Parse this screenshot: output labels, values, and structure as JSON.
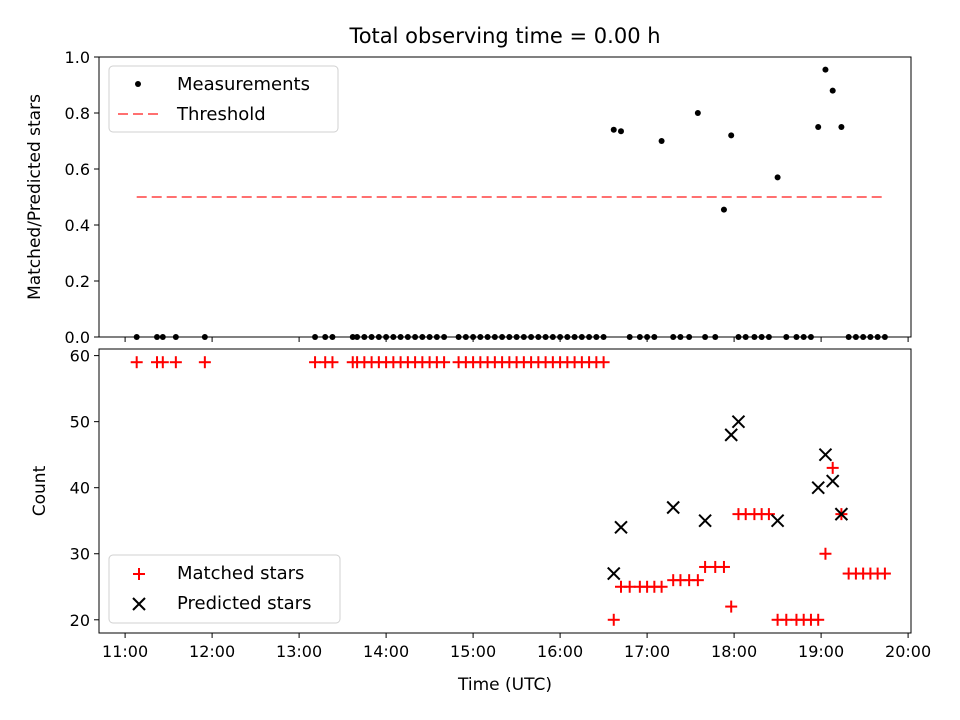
{
  "chart_data": [
    {
      "panel": "top",
      "type": "scatter",
      "title": "Total observing time = 0.00 h",
      "ylabel": "Matched/Predicted stars",
      "xlabel": "",
      "ylim": [
        0,
        1.0
      ],
      "yticks": [
        "0.0",
        "0.2",
        "0.4",
        "0.6",
        "0.8",
        "1.0"
      ],
      "legend": {
        "position": "top-left",
        "entries": [
          "Measurements",
          "Threshold"
        ]
      },
      "series": [
        {
          "name": "Measurements",
          "color": "#000000",
          "marker": "dot",
          "x": [
            "11:08",
            "11:22",
            "11:26",
            "11:35",
            "11:55",
            "13:11",
            "13:18",
            "13:23",
            "13:37",
            "13:40",
            "13:45",
            "13:50",
            "13:55",
            "14:00",
            "14:05",
            "14:10",
            "14:15",
            "14:20",
            "14:25",
            "14:30",
            "14:35",
            "14:40",
            "14:50",
            "14:55",
            "15:00",
            "15:05",
            "15:10",
            "15:15",
            "15:20",
            "15:25",
            "15:30",
            "15:35",
            "15:40",
            "15:45",
            "15:50",
            "15:55",
            "16:00",
            "16:05",
            "16:10",
            "16:15",
            "16:20",
            "16:25",
            "16:30",
            "16:37",
            "16:42",
            "16:48",
            "16:55",
            "17:00",
            "17:05",
            "17:10",
            "17:18",
            "17:23",
            "17:29",
            "17:35",
            "17:40",
            "17:47",
            "17:53",
            "17:58",
            "18:03",
            "18:08",
            "18:14",
            "18:19",
            "18:24",
            "18:30",
            "18:36",
            "18:43",
            "18:48",
            "18:53",
            "18:58",
            "19:03",
            "19:08",
            "19:14",
            "19:19",
            "19:24",
            "19:29",
            "19:34",
            "19:39",
            "19:44"
          ],
          "y": [
            0,
            0,
            0,
            0,
            0,
            0,
            0,
            0,
            0,
            0,
            0,
            0,
            0,
            0,
            0,
            0,
            0,
            0,
            0,
            0,
            0,
            0,
            0,
            0,
            0,
            0,
            0,
            0,
            0,
            0,
            0,
            0,
            0,
            0,
            0,
            0,
            0,
            0,
            0,
            0,
            0,
            0,
            0,
            0.74,
            0.735,
            0,
            0,
            0,
            0,
            0.7,
            0,
            0,
            0,
            0.8,
            0,
            0,
            0.455,
            0.72,
            0,
            0,
            0,
            0,
            0,
            0.57,
            0,
            0,
            0,
            0,
            0.75,
            0.955,
            0.88,
            0.75,
            0,
            0,
            0,
            0,
            0,
            0
          ]
        },
        {
          "name": "Threshold",
          "color": "#ff7070",
          "style": "dashed",
          "x": [
            "11:08",
            "19:44"
          ],
          "y": [
            0.5,
            0.5
          ]
        }
      ]
    },
    {
      "panel": "bottom",
      "type": "scatter",
      "title": "",
      "ylabel": "Count",
      "xlabel": "Time (UTC)",
      "ylim": [
        18,
        61
      ],
      "yticks": [
        "20",
        "30",
        "40",
        "50",
        "60"
      ],
      "xlim": [
        "10:42",
        "20:02"
      ],
      "xticks": [
        "11:00",
        "12:00",
        "13:00",
        "14:00",
        "15:00",
        "16:00",
        "17:00",
        "18:00",
        "19:00",
        "20:00"
      ],
      "legend": {
        "position": "bottom-left",
        "entries": [
          "Matched stars",
          "Predicted stars"
        ]
      },
      "series": [
        {
          "name": "Matched stars",
          "color": "#ff0000",
          "marker": "plus",
          "x": [
            "11:08",
            "11:22",
            "11:26",
            "11:35",
            "11:55",
            "13:11",
            "13:18",
            "13:23",
            "13:37",
            "13:40",
            "13:45",
            "13:50",
            "13:55",
            "14:00",
            "14:05",
            "14:10",
            "14:15",
            "14:20",
            "14:25",
            "14:30",
            "14:35",
            "14:40",
            "14:50",
            "14:55",
            "15:00",
            "15:05",
            "15:10",
            "15:15",
            "15:20",
            "15:25",
            "15:30",
            "15:35",
            "15:40",
            "15:45",
            "15:50",
            "15:55",
            "16:00",
            "16:05",
            "16:10",
            "16:15",
            "16:20",
            "16:25",
            "16:30",
            "16:37",
            "16:42",
            "16:48",
            "16:55",
            "17:00",
            "17:05",
            "17:10",
            "17:18",
            "17:23",
            "17:29",
            "17:35",
            "17:40",
            "17:47",
            "17:53",
            "17:58",
            "18:03",
            "18:08",
            "18:14",
            "18:19",
            "18:24",
            "18:30",
            "18:36",
            "18:43",
            "18:48",
            "18:53",
            "18:58",
            "19:03",
            "19:08",
            "19:14",
            "19:19",
            "19:24",
            "19:29",
            "19:34",
            "19:39",
            "19:44"
          ],
          "y": [
            59,
            59,
            59,
            59,
            59,
            59,
            59,
            59,
            59,
            59,
            59,
            59,
            59,
            59,
            59,
            59,
            59,
            59,
            59,
            59,
            59,
            59,
            59,
            59,
            59,
            59,
            59,
            59,
            59,
            59,
            59,
            59,
            59,
            59,
            59,
            59,
            59,
            59,
            59,
            59,
            59,
            59,
            59,
            20,
            25,
            25,
            25,
            25,
            25,
            25,
            26,
            26,
            26,
            26,
            28,
            28,
            28,
            22,
            36,
            36,
            36,
            36,
            36,
            20,
            20,
            20,
            20,
            20,
            20,
            30,
            43,
            36,
            27,
            27,
            27,
            27,
            27,
            27
          ]
        },
        {
          "name": "Predicted stars",
          "color": "#000000",
          "marker": "x",
          "x": [
            "16:37",
            "16:42",
            "17:18",
            "17:40",
            "17:58",
            "18:03",
            "18:30",
            "18:58",
            "19:03",
            "19:08",
            "19:14"
          ],
          "y": [
            27,
            34,
            37,
            35,
            48,
            50,
            35,
            40,
            45,
            41,
            36
          ]
        }
      ]
    }
  ]
}
